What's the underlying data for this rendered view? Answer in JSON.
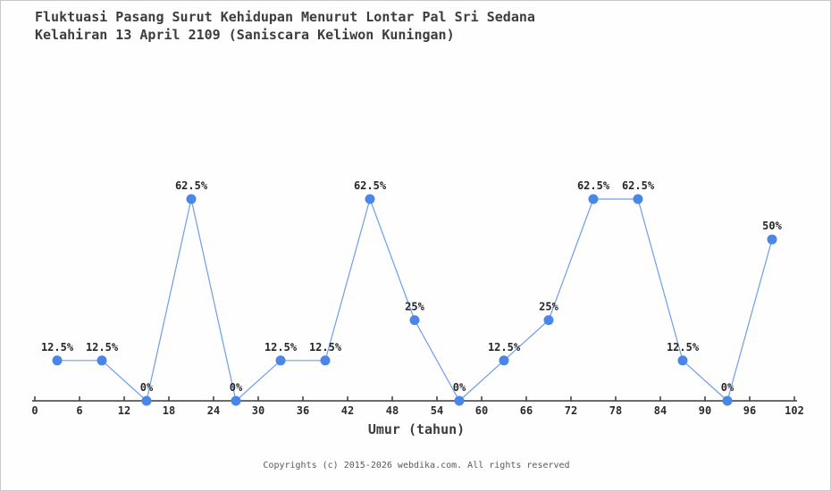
{
  "page": {
    "background_color": "#fefefe",
    "border_color": "#c9c9c9"
  },
  "header": {
    "title_line1": "Fluktuasi Pasang Surut Kehidupan Menurut Lontar Pal Sri Sedana",
    "title_line2": "Kelahiran 13 April 2109 (Saniscara Keliwon Kuningan)"
  },
  "footer": {
    "copyright": "Copyrights (c) 2015-2026 webdika.com. All rights reserved"
  },
  "chart_data": {
    "type": "line",
    "title": "Fluktuasi Pasang Surut Kehidupan Menurut Lontar Pal Sri Sedana Kelahiran 13 April 2109 (Saniscara Keliwon Kuningan)",
    "xlabel": "Umur (tahun)",
    "ylabel": "",
    "x": [
      3,
      9,
      15,
      21,
      27,
      33,
      39,
      45,
      51,
      57,
      63,
      69,
      75,
      81,
      87,
      93,
      99
    ],
    "values": [
      12.5,
      12.5,
      0,
      62.5,
      0,
      12.5,
      12.5,
      62.5,
      25,
      0,
      12.5,
      25,
      62.5,
      62.5,
      12.5,
      0,
      50
    ],
    "point_labels": [
      "12.5%",
      "12.5%",
      "0%",
      "62.5%",
      "0%",
      "12.5%",
      "12.5%",
      "62.5%",
      "25%",
      "0%",
      "12.5%",
      "25%",
      "62.5%",
      "62.5%",
      "12.5%",
      "0%",
      "50%"
    ],
    "x_ticks": [
      0,
      6,
      12,
      18,
      24,
      30,
      36,
      42,
      48,
      54,
      60,
      66,
      72,
      78,
      84,
      90,
      96,
      102
    ],
    "xlim": [
      0,
      102
    ],
    "ylim": [
      0,
      62.5
    ],
    "grid": false,
    "legend": null,
    "line_color": "#6f9ee8",
    "marker_color": "#4a86e8",
    "axis_color": "#3a3a3a",
    "tick_label_color": "#2b2b2b",
    "point_label_color": "#262626"
  }
}
